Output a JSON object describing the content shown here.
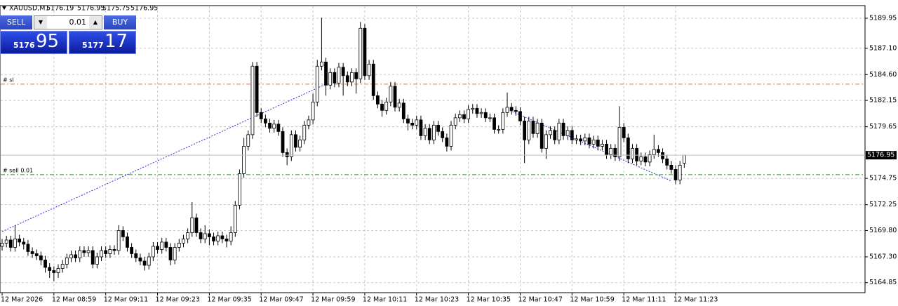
{
  "chart_data": {
    "type": "candlestick",
    "symbol": "XAUUSD,M1",
    "categories": [
      "12 Mar 2026",
      null,
      null,
      null,
      null,
      null,
      null,
      null,
      null,
      null,
      null,
      null,
      "12 Mar 08:59",
      null,
      null,
      null,
      null,
      null,
      null,
      null,
      null,
      null,
      null,
      null,
      "12 Mar 09:11",
      null,
      null,
      null,
      null,
      null,
      null,
      null,
      null,
      null,
      null,
      null,
      "12 Mar 09:23",
      null,
      null,
      null,
      null,
      null,
      null,
      null,
      null,
      null,
      null,
      null,
      "12 Mar 09:35",
      null,
      null,
      null,
      null,
      null,
      null,
      null,
      null,
      null,
      null,
      null,
      "12 Mar 09:47",
      null,
      null,
      null,
      null,
      null,
      null,
      null,
      null,
      null,
      null,
      null,
      "12 Mar 09:59",
      null,
      null,
      null,
      null,
      null,
      null,
      null,
      null,
      null,
      null,
      null,
      "12 Mar 10:11",
      null,
      null,
      null,
      null,
      null,
      null,
      null,
      null,
      null,
      null,
      null,
      "12 Mar 10:23",
      null,
      null,
      null,
      null,
      null,
      null,
      null,
      null,
      null,
      null,
      null,
      "12 Mar 10:35",
      null,
      null,
      null,
      null,
      null,
      null,
      null,
      null,
      null,
      null,
      null,
      "12 Mar 10:47",
      null,
      null,
      null,
      null,
      null,
      null,
      null,
      null,
      null,
      null,
      null,
      "12 Mar 10:59",
      null,
      null,
      null,
      null,
      null,
      null,
      null,
      null,
      null,
      null,
      null,
      "12 Mar 11:11",
      null,
      null,
      null,
      null,
      null,
      null,
      null,
      null,
      null,
      null,
      null,
      "12 Mar 11:23",
      null,
      null
    ],
    "open": [
      5168.3,
      5168.6,
      5168.9,
      5168.2,
      5169.0,
      5168.7,
      5168.5,
      5167.8,
      5167.6,
      5167.4,
      5167.0,
      5166.3,
      5166.0,
      5165.8,
      5166.2,
      5166.6,
      5167.2,
      5167.5,
      5167.2,
      5167.9,
      5167.7,
      5167.9,
      5166.6,
      5167.3,
      5167.9,
      5167.6,
      5168.0,
      5167.9,
      5169.8,
      5169.2,
      5168.2,
      5167.6,
      5167.2,
      5166.9,
      5166.5,
      5167.3,
      5168.3,
      5168.0,
      5168.7,
      5168.2,
      5167.0,
      5168.2,
      5168.6,
      5169.0,
      5169.6,
      5171.0,
      5169.6,
      5169.0,
      5169.5,
      5169.2,
      5168.8,
      5169.3,
      5169.0,
      5168.8,
      5169.6,
      5172.2,
      5175.2,
      5177.8,
      5178.9,
      5185.4,
      5181.0,
      5180.4,
      5180.0,
      5179.5,
      5179.9,
      5179.2,
      5177.2,
      5176.8,
      5178.9,
      5177.7,
      5178.4,
      5179.8,
      5180.3,
      5182.0,
      5185.4,
      5185.8,
      5183.6,
      5184.8,
      5183.8,
      5185.3,
      5184.5,
      5183.9,
      5184.8,
      5184.2,
      5189.0,
      5184.5,
      5185.6,
      5182.6,
      5181.8,
      5181.2,
      5182.0,
      5183.5,
      5181.5,
      5181.9,
      5180.4,
      5180.0,
      5179.8,
      5180.3,
      5178.8,
      5179.5,
      5178.4,
      5179.8,
      5179.2,
      5178.6,
      5177.8,
      5179.8,
      5180.5,
      5180.8,
      5180.4,
      5181.3,
      5181.4,
      5180.9,
      5181.0,
      5180.5,
      5180.5,
      5179.4,
      5179.4,
      5181.0,
      5181.5,
      5181.2,
      5181.1,
      5180.2,
      5178.4,
      5180.2,
      5179.0,
      5180.0,
      5177.6,
      5178.9,
      5179.3,
      5178.4,
      5180.0,
      5178.8,
      5179.3,
      5178.4,
      5178.5,
      5178.3,
      5178.6,
      5178.0,
      5178.4,
      5177.8,
      5178.0,
      5177.0,
      5177.6,
      5176.8,
      5179.6,
      5178.6,
      5176.6,
      5177.6,
      5176.4,
      5176.8,
      5176.3,
      5177.0,
      5177.5,
      5177.2,
      5176.6,
      5176.0,
      5175.6,
      5174.6,
      5176.19
    ],
    "high": [
      5169.0,
      5169.3,
      5169.3,
      5170.3,
      5169.4,
      5169.1,
      5168.9,
      5168.2,
      5168.0,
      5167.8,
      5167.4,
      5166.7,
      5166.4,
      5166.6,
      5167.0,
      5167.6,
      5167.9,
      5167.9,
      5168.3,
      5168.3,
      5168.3,
      5168.3,
      5167.7,
      5168.3,
      5168.3,
      5168.4,
      5168.4,
      5170.3,
      5170.2,
      5169.6,
      5168.6,
      5168.0,
      5167.6,
      5167.3,
      5167.7,
      5168.7,
      5168.7,
      5169.1,
      5169.1,
      5168.6,
      5168.6,
      5169.0,
      5169.4,
      5170.0,
      5172.5,
      5171.4,
      5170.0,
      5170.3,
      5169.9,
      5169.6,
      5169.7,
      5169.7,
      5169.4,
      5170.2,
      5172.6,
      5175.6,
      5178.6,
      5179.3,
      5185.8,
      5185.8,
      5181.4,
      5180.8,
      5180.4,
      5180.3,
      5180.3,
      5179.6,
      5177.6,
      5179.3,
      5179.3,
      5178.8,
      5180.2,
      5180.7,
      5182.8,
      5186.0,
      5190.0,
      5186.2,
      5185.2,
      5185.2,
      5185.7,
      5185.7,
      5184.9,
      5185.2,
      5185.2,
      5189.6,
      5189.4,
      5186.0,
      5186.0,
      5183.0,
      5182.2,
      5182.4,
      5183.9,
      5183.9,
      5182.3,
      5182.3,
      5180.8,
      5180.4,
      5180.7,
      5180.7,
      5179.9,
      5179.9,
      5180.2,
      5180.2,
      5179.6,
      5179.0,
      5180.2,
      5180.9,
      5181.2,
      5181.2,
      5181.7,
      5181.8,
      5181.8,
      5181.4,
      5181.4,
      5180.9,
      5180.9,
      5179.8,
      5181.4,
      5182.9,
      5181.9,
      5181.6,
      5181.5,
      5180.6,
      5180.6,
      5180.6,
      5180.4,
      5180.4,
      5179.3,
      5179.7,
      5179.7,
      5180.4,
      5180.4,
      5179.7,
      5179.7,
      5178.9,
      5178.9,
      5179.0,
      5179.0,
      5178.8,
      5178.8,
      5178.4,
      5178.4,
      5178.0,
      5178.0,
      5181.6,
      5180.0,
      5179.0,
      5178.0,
      5178.0,
      5177.2,
      5177.2,
      5177.4,
      5178.9,
      5177.9,
      5177.6,
      5177.0,
      5176.4,
      5176.0,
      5176.4,
      5176.95
    ],
    "low": [
      5167.9,
      5168.2,
      5167.8,
      5167.8,
      5168.3,
      5168.0,
      5167.4,
      5167.2,
      5167.0,
      5166.5,
      5165.8,
      5165.3,
      5165.0,
      5165.3,
      5165.8,
      5166.2,
      5166.8,
      5166.8,
      5166.8,
      5167.3,
      5167.3,
      5166.2,
      5166.2,
      5166.9,
      5167.2,
      5167.2,
      5167.5,
      5167.5,
      5168.8,
      5167.8,
      5167.2,
      5166.8,
      5166.5,
      5166.0,
      5166.1,
      5166.9,
      5167.6,
      5167.6,
      5167.8,
      5166.5,
      5166.6,
      5167.8,
      5168.2,
      5168.6,
      5169.2,
      5169.2,
      5168.6,
      5168.6,
      5168.4,
      5168.4,
      5168.4,
      5168.6,
      5168.2,
      5168.4,
      5169.2,
      5171.8,
      5174.8,
      5177.4,
      5178.5,
      5180.6,
      5180.0,
      5179.6,
      5179.1,
      5179.1,
      5178.8,
      5176.8,
      5176.0,
      5176.4,
      5177.3,
      5177.3,
      5178.0,
      5179.4,
      5179.9,
      5181.6,
      5185.0,
      5182.6,
      5183.2,
      5183.4,
      5183.4,
      5182.6,
      5183.5,
      5183.5,
      5182.8,
      5183.8,
      5184.1,
      5184.1,
      5182.2,
      5181.4,
      5180.6,
      5180.8,
      5181.6,
      5181.1,
      5181.1,
      5180.0,
      5179.3,
      5179.4,
      5179.4,
      5178.4,
      5178.4,
      5178.0,
      5178.0,
      5178.8,
      5178.2,
      5177.3,
      5177.4,
      5179.4,
      5180.1,
      5180.0,
      5180.0,
      5180.9,
      5180.5,
      5180.5,
      5180.1,
      5180.1,
      5179.0,
      5179.0,
      5179.0,
      5180.6,
      5180.8,
      5180.7,
      5179.8,
      5176.2,
      5178.0,
      5178.6,
      5178.6,
      5177.2,
      5176.6,
      5178.5,
      5178.0,
      5178.0,
      5178.4,
      5178.4,
      5178.0,
      5178.0,
      5177.9,
      5177.9,
      5177.6,
      5177.6,
      5177.4,
      5177.4,
      5176.6,
      5176.6,
      5176.4,
      5176.4,
      5178.2,
      5176.2,
      5176.2,
      5176.0,
      5176.0,
      5175.9,
      5175.9,
      5176.6,
      5176.8,
      5176.2,
      5175.6,
      5175.2,
      5174.2,
      5174.2,
      5175.75
    ],
    "close": [
      5168.6,
      5168.9,
      5168.2,
      5169.0,
      5168.7,
      5168.5,
      5167.8,
      5167.6,
      5167.4,
      5167.0,
      5166.3,
      5166.0,
      5165.8,
      5166.2,
      5166.6,
      5167.2,
      5167.5,
      5167.2,
      5167.9,
      5167.7,
      5167.9,
      5166.6,
      5167.3,
      5167.9,
      5167.6,
      5168.0,
      5167.9,
      5169.8,
      5169.2,
      5168.2,
      5167.6,
      5167.2,
      5166.9,
      5166.5,
      5167.3,
      5168.3,
      5168.0,
      5168.7,
      5168.2,
      5167.0,
      5168.2,
      5168.6,
      5169.0,
      5169.6,
      5171.0,
      5169.6,
      5169.0,
      5169.5,
      5169.2,
      5168.8,
      5169.3,
      5169.0,
      5168.8,
      5169.6,
      5172.2,
      5175.2,
      5177.8,
      5178.9,
      5185.4,
      5181.0,
      5180.4,
      5180.0,
      5179.5,
      5179.9,
      5179.2,
      5177.2,
      5176.8,
      5178.9,
      5177.7,
      5178.4,
      5179.8,
      5180.3,
      5182.0,
      5185.4,
      5185.8,
      5183.6,
      5184.8,
      5183.8,
      5185.3,
      5184.5,
      5183.9,
      5184.8,
      5184.2,
      5189.0,
      5184.5,
      5185.6,
      5182.6,
      5181.8,
      5181.2,
      5182.0,
      5183.5,
      5181.5,
      5181.9,
      5180.4,
      5180.0,
      5179.8,
      5180.3,
      5178.8,
      5179.5,
      5178.4,
      5179.8,
      5179.2,
      5178.6,
      5177.8,
      5179.8,
      5180.5,
      5180.8,
      5180.4,
      5181.3,
      5181.4,
      5180.9,
      5181.0,
      5180.5,
      5180.5,
      5179.4,
      5179.4,
      5181.0,
      5181.5,
      5181.2,
      5181.1,
      5180.2,
      5178.4,
      5180.2,
      5179.0,
      5180.0,
      5177.6,
      5178.9,
      5179.3,
      5178.4,
      5180.0,
      5178.8,
      5179.3,
      5178.4,
      5178.5,
      5178.3,
      5178.6,
      5178.0,
      5178.4,
      5177.8,
      5178.0,
      5177.0,
      5177.6,
      5176.8,
      5179.6,
      5178.6,
      5176.6,
      5177.6,
      5176.4,
      5176.8,
      5176.3,
      5177.0,
      5177.5,
      5177.2,
      5176.6,
      5176.0,
      5175.6,
      5174.6,
      5176.0,
      5176.95
    ],
    "ylim": [
      5163.9,
      5191.15
    ],
    "yticks": [
      5164.85,
      {
        "value": 5167.3,
        "label": "5167.30"
      },
      {
        "value": 5169.8,
        "label": "5169.80"
      },
      5172.25,
      5174.75,
      5179.65,
      5182.15,
      {
        "value": 5184.6,
        "label": "5184.60"
      },
      {
        "value": 5187.1,
        "label": "5187.10"
      },
      5189.95
    ],
    "grid": true,
    "bull_color": "#ffffff",
    "bear_color": "#000000",
    "outline_color": "#000000",
    "price_line_color": "#c0c0c0",
    "levels": [
      {
        "label": "#  sl",
        "price": 5183.7,
        "color": "#e0703a"
      },
      {
        "label": "#  sell 0.01",
        "price": 5175.1,
        "color": "#2a9a2a"
      }
    ],
    "trades": [
      {
        "open_index": 0,
        "open_price": 5169.7,
        "close_index": 75,
        "close_price": 5183.7,
        "color": "#2a2ae0"
      },
      {
        "open_index": 117,
        "open_price": 5181.3,
        "close_index": 155,
        "close_price": 5174.5,
        "color": "#2a2ae0"
      }
    ]
  },
  "trade_panel": {
    "sell": "SELL",
    "buy": "BUY",
    "volume": "0.01",
    "bid_big": "5176",
    "bid_small": "95",
    "ask_big": "5177",
    "ask_small": "17"
  }
}
